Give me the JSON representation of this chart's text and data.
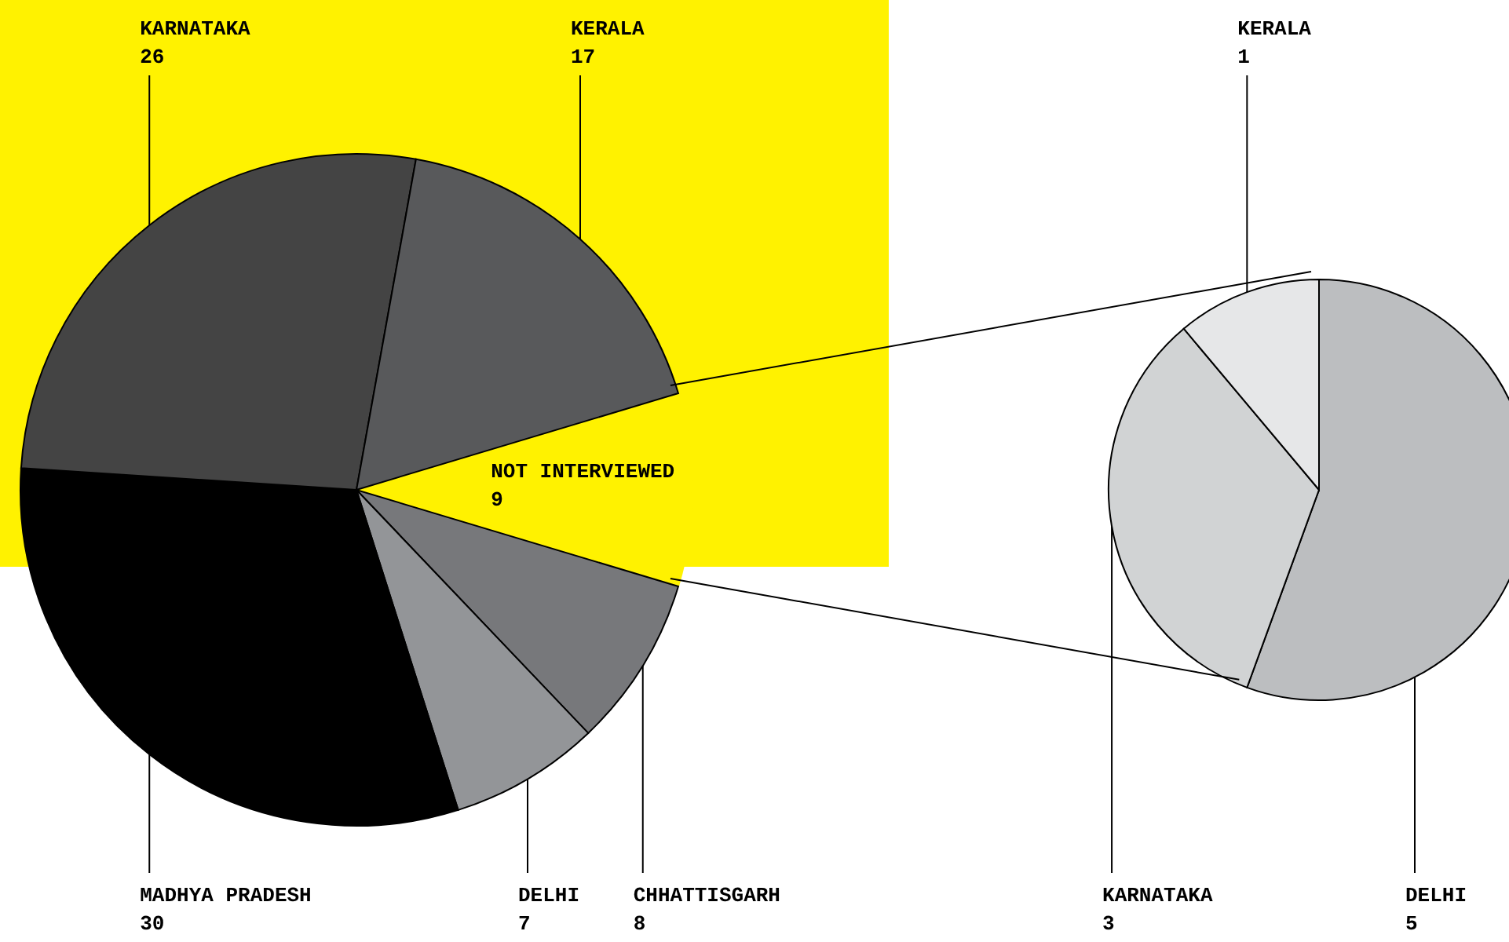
{
  "chart_data": [
    {
      "type": "pie",
      "categories": [
        "NOT INTERVIEWED",
        "CHHATTISGARH",
        "DELHI",
        "MADHYA PRADESH",
        "KARNATAKA",
        "KERALA"
      ],
      "values": [
        9,
        8,
        7,
        30,
        26,
        17
      ],
      "colors": [
        "#fff200",
        "#77787b",
        "#939598",
        "#000000",
        "#444444",
        "#58595b"
      ],
      "data_labels": true
    },
    {
      "type": "pie",
      "categories": [
        "DELHI",
        "KARNATAKA",
        "KERALA"
      ],
      "values": [
        5,
        3,
        1
      ],
      "colors": [
        "#bcbec0",
        "#d1d3d4",
        "#e6e7e8"
      ],
      "data_labels": true
    }
  ]
}
